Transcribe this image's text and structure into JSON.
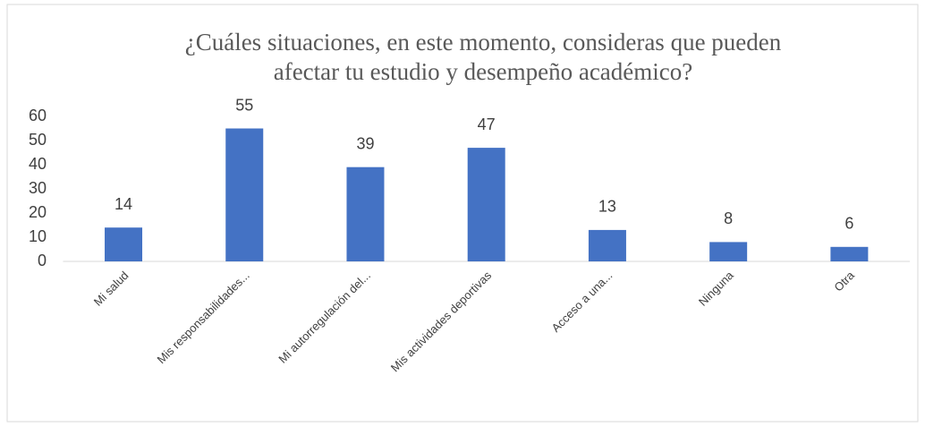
{
  "chart_data": {
    "type": "bar",
    "title": [
      "¿Cuáles situaciones, en este momento, consideras que pueden",
      "afectar tu estudio y desempeño académico?"
    ],
    "categories": [
      "Mi salud",
      "Mis responsabilidades...",
      "Mi autorregulación del...",
      "Mis actividades deportivas",
      "Acceso a una...",
      "Ninguna",
      "Otra"
    ],
    "values": [
      14,
      55,
      39,
      47,
      13,
      8,
      6
    ],
    "color": "#4472c4",
    "ylim": [
      0,
      60
    ],
    "yticks": [
      0,
      10,
      20,
      30,
      40,
      50,
      60
    ],
    "grid": false
  }
}
